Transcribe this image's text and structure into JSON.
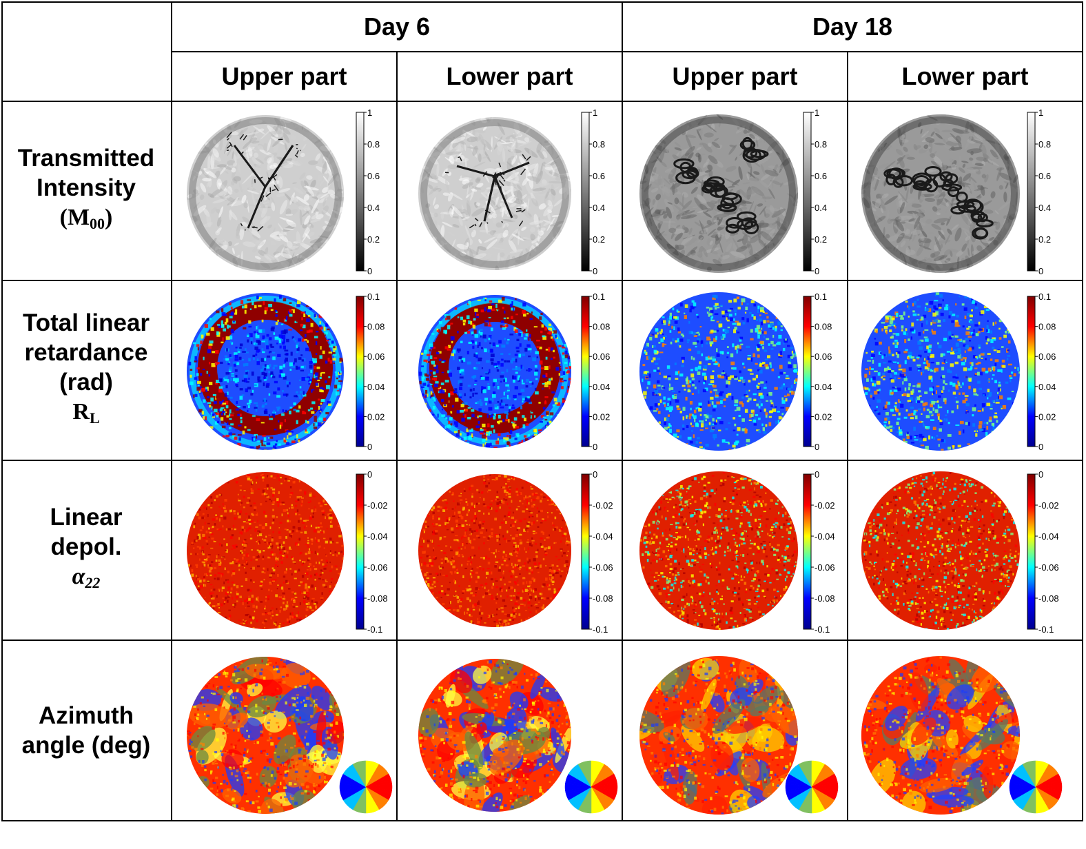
{
  "header": {
    "days": [
      {
        "label": "Day 6",
        "parts": [
          "Upper part",
          "Lower part"
        ]
      },
      {
        "label": "Day 18",
        "parts": [
          "Upper part",
          "Lower part"
        ]
      }
    ]
  },
  "rows": [
    {
      "label_lines": [
        "Transmitted",
        "Intensity"
      ],
      "symbol_main": "(M",
      "symbol_sub": "00",
      "symbol_tail": ")",
      "map": "gray",
      "colorbar": {
        "colors": [
          "#000000",
          "#ffffff"
        ],
        "ticks": [
          "1",
          "0.8",
          "0.6",
          "0.4",
          "0.2",
          "0"
        ]
      },
      "legend": "colorbar"
    },
    {
      "label_lines": [
        "Total linear",
        "retardance",
        "(rad)"
      ],
      "symbol_main": "R",
      "symbol_sub": "L",
      "symbol_tail": "",
      "map": "jet_low",
      "colorbar": {
        "colors": [
          "#00008f",
          "#0000ff",
          "#00ffff",
          "#ffff00",
          "#ff0000",
          "#800000"
        ],
        "ticks": [
          "0.1",
          "0.08",
          "0.06",
          "0.04",
          "0.02",
          "0"
        ]
      },
      "legend": "colorbar"
    },
    {
      "label_lines": [
        "Linear",
        "depol."
      ],
      "symbol_main": "α",
      "symbol_sub": "22",
      "symbol_tail": "",
      "symbol_italic": true,
      "map": "red",
      "colorbar": {
        "colors": [
          "#00008f",
          "#0000ff",
          "#00ffff",
          "#ffff00",
          "#ff0000",
          "#800000"
        ],
        "ticks": [
          "0",
          "-0.02",
          "-0.04",
          "-0.06",
          "-0.08",
          "-0.1"
        ]
      },
      "legend": "colorbar"
    },
    {
      "label_lines": [
        "Azimuth",
        "angle (deg)"
      ],
      "symbol_main": "",
      "symbol_sub": "",
      "symbol_tail": "",
      "map": "azimuth",
      "legend": "colorwheel"
    }
  ],
  "colors": {
    "grid_line": "#000000",
    "jet_dark_blue": "#00008f",
    "jet_blue": "#1e4dff",
    "jet_cyan": "#00ffff",
    "jet_yellow": "#ffff00",
    "jet_red": "#ff2000",
    "jet_dark_red": "#8f0000"
  }
}
